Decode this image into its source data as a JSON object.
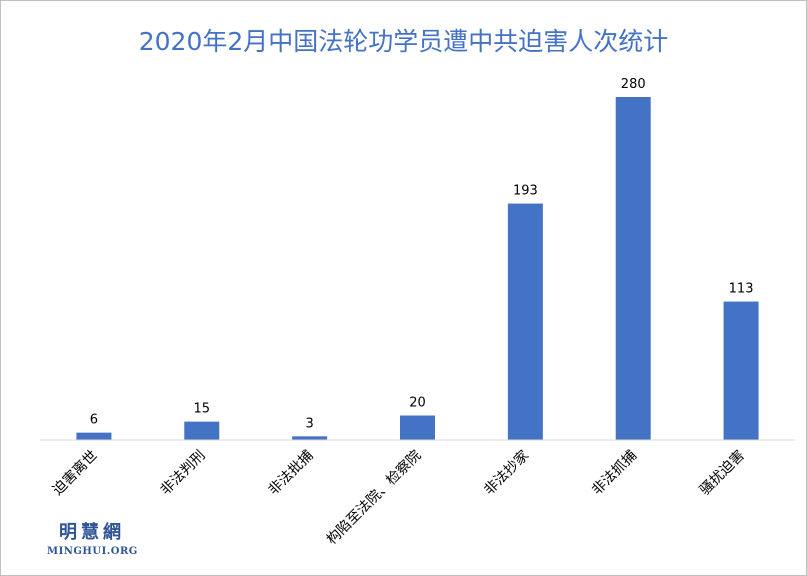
{
  "chart_data": {
    "type": "bar",
    "title": "2020年2月中国法轮功学员遭中共迫害人次统计",
    "categories": [
      "迫害离世",
      "非法判刑",
      "非法批捕",
      "构陷至法院、检察院",
      "非法抄家",
      "非法抓捕",
      "骚扰迫害"
    ],
    "values": [
      6,
      15,
      3,
      20,
      193,
      280,
      113
    ],
    "ylim": [
      0,
      280
    ],
    "bar_color": "#4472c4",
    "grid": false,
    "legend": "none"
  },
  "logo": {
    "main": "明慧網",
    "sub": "MINGHUI.ORG"
  }
}
